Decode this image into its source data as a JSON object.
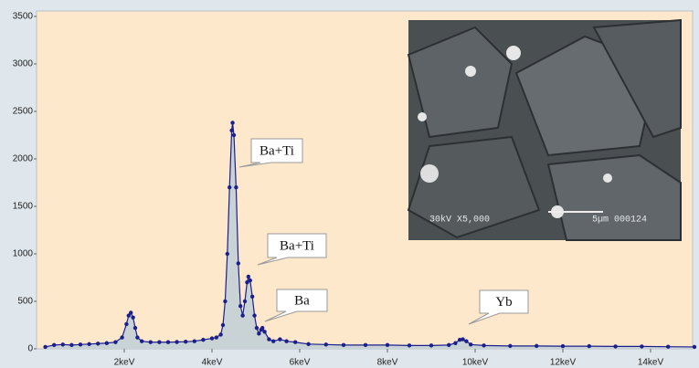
{
  "chart_data": {
    "type": "line",
    "x": [
      0.2,
      0.4,
      0.6,
      0.8,
      1.0,
      1.2,
      1.4,
      1.6,
      1.8,
      1.95,
      2.05,
      2.1,
      2.15,
      2.2,
      2.25,
      2.3,
      2.4,
      2.6,
      2.8,
      3.0,
      3.2,
      3.4,
      3.6,
      3.8,
      4.0,
      4.1,
      4.2,
      4.25,
      4.3,
      4.35,
      4.4,
      4.45,
      4.47,
      4.5,
      4.55,
      4.6,
      4.65,
      4.7,
      4.75,
      4.8,
      4.83,
      4.87,
      4.92,
      4.97,
      5.02,
      5.07,
      5.12,
      5.15,
      5.2,
      5.3,
      5.4,
      5.55,
      5.7,
      5.9,
      6.2,
      6.6,
      7.0,
      7.5,
      8.0,
      8.5,
      9.0,
      9.4,
      9.55,
      9.65,
      9.72,
      9.8,
      9.9,
      10.2,
      10.8,
      11.4,
      12.0,
      12.6,
      13.2,
      13.8,
      14.4,
      15.0
    ],
    "series": [
      {
        "color": "#1a1f8c",
        "fill": "#c9d3d6",
        "values": [
          20,
          40,
          45,
          40,
          45,
          50,
          55,
          60,
          70,
          120,
          260,
          350,
          380,
          330,
          220,
          120,
          80,
          70,
          70,
          70,
          72,
          75,
          80,
          95,
          110,
          120,
          150,
          250,
          500,
          1000,
          1700,
          2300,
          2380,
          2250,
          1700,
          900,
          450,
          350,
          500,
          700,
          760,
          720,
          550,
          350,
          220,
          160,
          200,
          220,
          180,
          100,
          80,
          100,
          80,
          70,
          50,
          45,
          40,
          40,
          40,
          35,
          35,
          40,
          60,
          95,
          100,
          80,
          45,
          35,
          30,
          30,
          28,
          28,
          25,
          25,
          22,
          20
        ]
      }
    ],
    "xlim": [
      0,
      15
    ],
    "xticks": [
      {
        "value": 2,
        "label": "2keV"
      },
      {
        "value": 4,
        "label": "4keV"
      },
      {
        "value": 6,
        "label": "6keV"
      },
      {
        "value": 8,
        "label": "8keV"
      },
      {
        "value": 10,
        "label": "10keV"
      },
      {
        "value": 12,
        "label": "12keV"
      },
      {
        "value": 14,
        "label": "14keV"
      }
    ],
    "ylim": [
      0,
      3500
    ],
    "yticks": [
      0,
      500,
      1000,
      1500,
      2000,
      2500,
      3000,
      3500
    ],
    "annotations": [
      "Ba+Ti",
      "Ba+Ti",
      "Ba",
      "Yb"
    ],
    "inset_labels": [
      "30kV X5,000",
      "5µm 000124"
    ]
  }
}
